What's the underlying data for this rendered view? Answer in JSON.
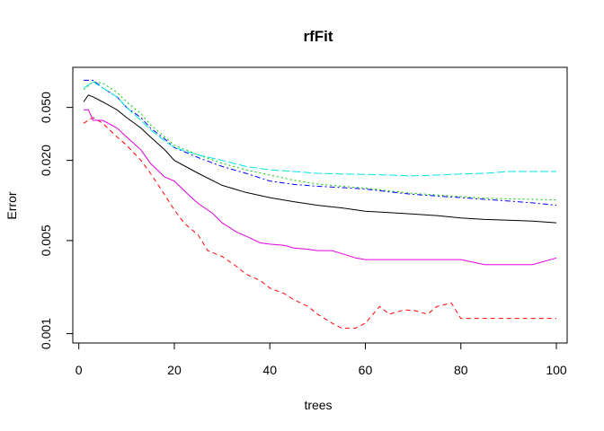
{
  "chart_data": {
    "type": "line",
    "title": "rfFit",
    "xlabel": "trees",
    "ylabel": "Error",
    "xlim": [
      1,
      100
    ],
    "ylim": [
      0.00085,
      0.1
    ],
    "log_y": true,
    "grid": false,
    "legend": "none",
    "x_ticks": [
      0,
      20,
      40,
      60,
      80,
      100
    ],
    "x_tick_labels": [
      "0",
      "20",
      "40",
      "60",
      "80",
      "100"
    ],
    "y_ticks": [
      0.001,
      0.005,
      0.02,
      0.05
    ],
    "y_tick_labels": [
      "0.001",
      "0.005",
      "0.020",
      "0.050"
    ],
    "series": [
      {
        "color": "#000000",
        "dash": "",
        "points": [
          [
            1,
            0.055
          ],
          [
            2,
            0.062
          ],
          [
            3,
            0.06
          ],
          [
            5,
            0.055
          ],
          [
            8,
            0.048
          ],
          [
            10,
            0.042
          ],
          [
            13,
            0.035
          ],
          [
            15,
            0.03
          ],
          [
            18,
            0.024
          ],
          [
            20,
            0.02
          ],
          [
            25,
            0.016
          ],
          [
            30,
            0.013
          ],
          [
            35,
            0.0115
          ],
          [
            40,
            0.0105
          ],
          [
            45,
            0.0098
          ],
          [
            50,
            0.0092
          ],
          [
            55,
            0.0088
          ],
          [
            60,
            0.0083
          ],
          [
            65,
            0.0081
          ],
          [
            70,
            0.0079
          ],
          [
            75,
            0.0077
          ],
          [
            80,
            0.0074
          ],
          [
            85,
            0.0072
          ],
          [
            90,
            0.0071
          ],
          [
            95,
            0.007
          ],
          [
            100,
            0.0068
          ]
        ]
      },
      {
        "color": "#ff0000",
        "dash": "5,4",
        "points": [
          [
            1,
            0.038
          ],
          [
            3,
            0.042
          ],
          [
            5,
            0.038
          ],
          [
            8,
            0.03
          ],
          [
            10,
            0.026
          ],
          [
            13,
            0.02
          ],
          [
            15,
            0.016
          ],
          [
            18,
            0.011
          ],
          [
            20,
            0.0085
          ],
          [
            22,
            0.0068
          ],
          [
            25,
            0.0055
          ],
          [
            27,
            0.0042
          ],
          [
            30,
            0.0038
          ],
          [
            33,
            0.0032
          ],
          [
            35,
            0.0028
          ],
          [
            38,
            0.0025
          ],
          [
            40,
            0.0022
          ],
          [
            43,
            0.002
          ],
          [
            45,
            0.0018
          ],
          [
            48,
            0.0016
          ],
          [
            50,
            0.0014
          ],
          [
            53,
            0.0012
          ],
          [
            55,
            0.0011
          ],
          [
            58,
            0.0011
          ],
          [
            60,
            0.0012
          ],
          [
            63,
            0.0016
          ],
          [
            65,
            0.0014
          ],
          [
            68,
            0.0015
          ],
          [
            70,
            0.0015
          ],
          [
            73,
            0.0014
          ],
          [
            75,
            0.0016
          ],
          [
            78,
            0.0017
          ],
          [
            80,
            0.0013
          ],
          [
            85,
            0.0013
          ],
          [
            90,
            0.0013
          ],
          [
            95,
            0.0013
          ],
          [
            100,
            0.0013
          ]
        ]
      },
      {
        "color": "#00cc00",
        "dash": "2,3",
        "points": [
          [
            1,
            0.068
          ],
          [
            3,
            0.078
          ],
          [
            5,
            0.076
          ],
          [
            8,
            0.065
          ],
          [
            10,
            0.055
          ],
          [
            13,
            0.045
          ],
          [
            15,
            0.037
          ],
          [
            18,
            0.03
          ],
          [
            20,
            0.026
          ],
          [
            25,
            0.022
          ],
          [
            30,
            0.019
          ],
          [
            35,
            0.017
          ],
          [
            40,
            0.0155
          ],
          [
            45,
            0.0142
          ],
          [
            50,
            0.0133
          ],
          [
            55,
            0.0128
          ],
          [
            60,
            0.0124
          ],
          [
            65,
            0.0118
          ],
          [
            70,
            0.0113
          ],
          [
            75,
            0.011
          ],
          [
            80,
            0.0107
          ],
          [
            85,
            0.0104
          ],
          [
            90,
            0.0103
          ],
          [
            95,
            0.0102
          ],
          [
            100,
            0.0101
          ]
        ]
      },
      {
        "color": "#0000ff",
        "dash": "6,3,2,3",
        "points": [
          [
            1,
            0.08
          ],
          [
            3,
            0.08
          ],
          [
            5,
            0.07
          ],
          [
            8,
            0.06
          ],
          [
            10,
            0.05
          ],
          [
            13,
            0.042
          ],
          [
            15,
            0.035
          ],
          [
            18,
            0.029
          ],
          [
            20,
            0.025
          ],
          [
            25,
            0.021
          ],
          [
            30,
            0.018
          ],
          [
            35,
            0.016
          ],
          [
            40,
            0.014
          ],
          [
            45,
            0.0132
          ],
          [
            50,
            0.0128
          ],
          [
            55,
            0.0125
          ],
          [
            60,
            0.0122
          ],
          [
            65,
            0.0116
          ],
          [
            70,
            0.0111
          ],
          [
            75,
            0.0108
          ],
          [
            80,
            0.0105
          ],
          [
            85,
            0.0102
          ],
          [
            90,
            0.0099
          ],
          [
            95,
            0.0096
          ],
          [
            100,
            0.0092
          ]
        ]
      },
      {
        "color": "#00e5e5",
        "dash": "9,3",
        "points": [
          [
            1,
            0.07
          ],
          [
            3,
            0.078
          ],
          [
            5,
            0.07
          ],
          [
            8,
            0.06
          ],
          [
            10,
            0.05
          ],
          [
            13,
            0.04
          ],
          [
            15,
            0.034
          ],
          [
            18,
            0.028
          ],
          [
            20,
            0.025
          ],
          [
            25,
            0.022
          ],
          [
            30,
            0.02
          ],
          [
            35,
            0.018
          ],
          [
            40,
            0.017
          ],
          [
            45,
            0.0165
          ],
          [
            50,
            0.016
          ],
          [
            55,
            0.0158
          ],
          [
            60,
            0.0157
          ],
          [
            65,
            0.0155
          ],
          [
            70,
            0.0153
          ],
          [
            75,
            0.0155
          ],
          [
            80,
            0.0158
          ],
          [
            85,
            0.016
          ],
          [
            90,
            0.0165
          ],
          [
            95,
            0.0165
          ],
          [
            100,
            0.0165
          ]
        ]
      },
      {
        "color": "#e000e0",
        "dash": "",
        "points": [
          [
            1,
            0.048
          ],
          [
            2,
            0.048
          ],
          [
            3,
            0.04
          ],
          [
            5,
            0.04
          ],
          [
            8,
            0.035
          ],
          [
            10,
            0.03
          ],
          [
            13,
            0.024
          ],
          [
            15,
            0.019
          ],
          [
            18,
            0.015
          ],
          [
            20,
            0.014
          ],
          [
            23,
            0.011
          ],
          [
            25,
            0.0095
          ],
          [
            28,
            0.008
          ],
          [
            30,
            0.0068
          ],
          [
            33,
            0.0058
          ],
          [
            35,
            0.0054
          ],
          [
            38,
            0.0048
          ],
          [
            40,
            0.0047
          ],
          [
            43,
            0.0046
          ],
          [
            45,
            0.0044
          ],
          [
            48,
            0.0043
          ],
          [
            50,
            0.0042
          ],
          [
            53,
            0.0042
          ],
          [
            55,
            0.004
          ],
          [
            58,
            0.0037
          ],
          [
            60,
            0.0036
          ],
          [
            65,
            0.0036
          ],
          [
            70,
            0.0036
          ],
          [
            75,
            0.0036
          ],
          [
            80,
            0.0036
          ],
          [
            85,
            0.0033
          ],
          [
            90,
            0.0033
          ],
          [
            95,
            0.0033
          ],
          [
            100,
            0.0037
          ]
        ]
      }
    ]
  }
}
